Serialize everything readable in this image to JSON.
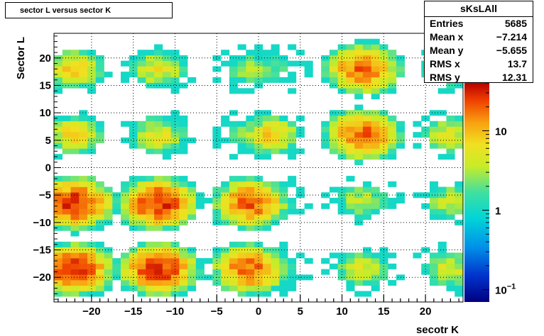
{
  "chart_data": {
    "type": "heatmap",
    "title": "sector L versus sector K",
    "xlabel": "secotr K",
    "ylabel": "Sector L",
    "xlim": [
      -24.5,
      24.5
    ],
    "ylim": [
      -24.5,
      24.5
    ],
    "x_ticks": [
      "-20",
      "-15",
      "-10",
      "-5",
      "0",
      "5",
      "10",
      "15",
      "20"
    ],
    "y_ticks": [
      "-20",
      "-15",
      "-10",
      "-5",
      "0",
      "5",
      "10",
      "15",
      "20"
    ],
    "z_scale": "log",
    "z_ticks": [
      "10",
      "1",
      "10-1"
    ],
    "grid": true,
    "clusters": [
      {
        "x": -22,
        "y": -18.5,
        "peak": 30
      },
      {
        "x": -12,
        "y": -18.5,
        "peak": 30
      },
      {
        "x": -1,
        "y": -18.5,
        "peak": 20
      },
      {
        "x": 1.5,
        "y": -18.5,
        "peak": 3
      },
      {
        "x": 12.5,
        "y": -18.5,
        "peak": 5
      },
      {
        "x": 23,
        "y": -18.5,
        "peak": 5
      },
      {
        "x": -22,
        "y": -6.5,
        "peak": 30
      },
      {
        "x": -12,
        "y": -6.5,
        "peak": 30
      },
      {
        "x": -1,
        "y": -6.5,
        "peak": 20
      },
      {
        "x": 1.5,
        "y": -6,
        "peak": 3
      },
      {
        "x": 12.5,
        "y": -6,
        "peak": 4
      },
      {
        "x": 23,
        "y": -6,
        "peak": 4
      },
      {
        "x": -22,
        "y": 6,
        "peak": 8
      },
      {
        "x": -12,
        "y": 6,
        "peak": 6
      },
      {
        "x": -1,
        "y": 6,
        "peak": 3
      },
      {
        "x": 1.5,
        "y": 6,
        "peak": 8
      },
      {
        "x": 12.5,
        "y": 6,
        "peak": 20
      },
      {
        "x": 23,
        "y": 6,
        "peak": 5
      },
      {
        "x": -22,
        "y": 18,
        "peak": 8
      },
      {
        "x": -12,
        "y": 18,
        "peak": 6
      },
      {
        "x": -1,
        "y": 18,
        "peak": 3
      },
      {
        "x": 1.5,
        "y": 18,
        "peak": 2
      },
      {
        "x": 12.5,
        "y": 18,
        "peak": 20
      },
      {
        "x": 23,
        "y": 18,
        "peak": 5
      }
    ]
  },
  "stats": {
    "name": "sKsLAll",
    "entries_label": "Entries",
    "entries": "5685",
    "meanx_label": "Mean x",
    "meanx": "−7.214",
    "meany_label": "Mean y",
    "meany": "−5.655",
    "rmsx_label": "RMS x",
    "rmsx": "13.7",
    "rmsy_label": "RMS y",
    "rmsy": "12.31"
  }
}
